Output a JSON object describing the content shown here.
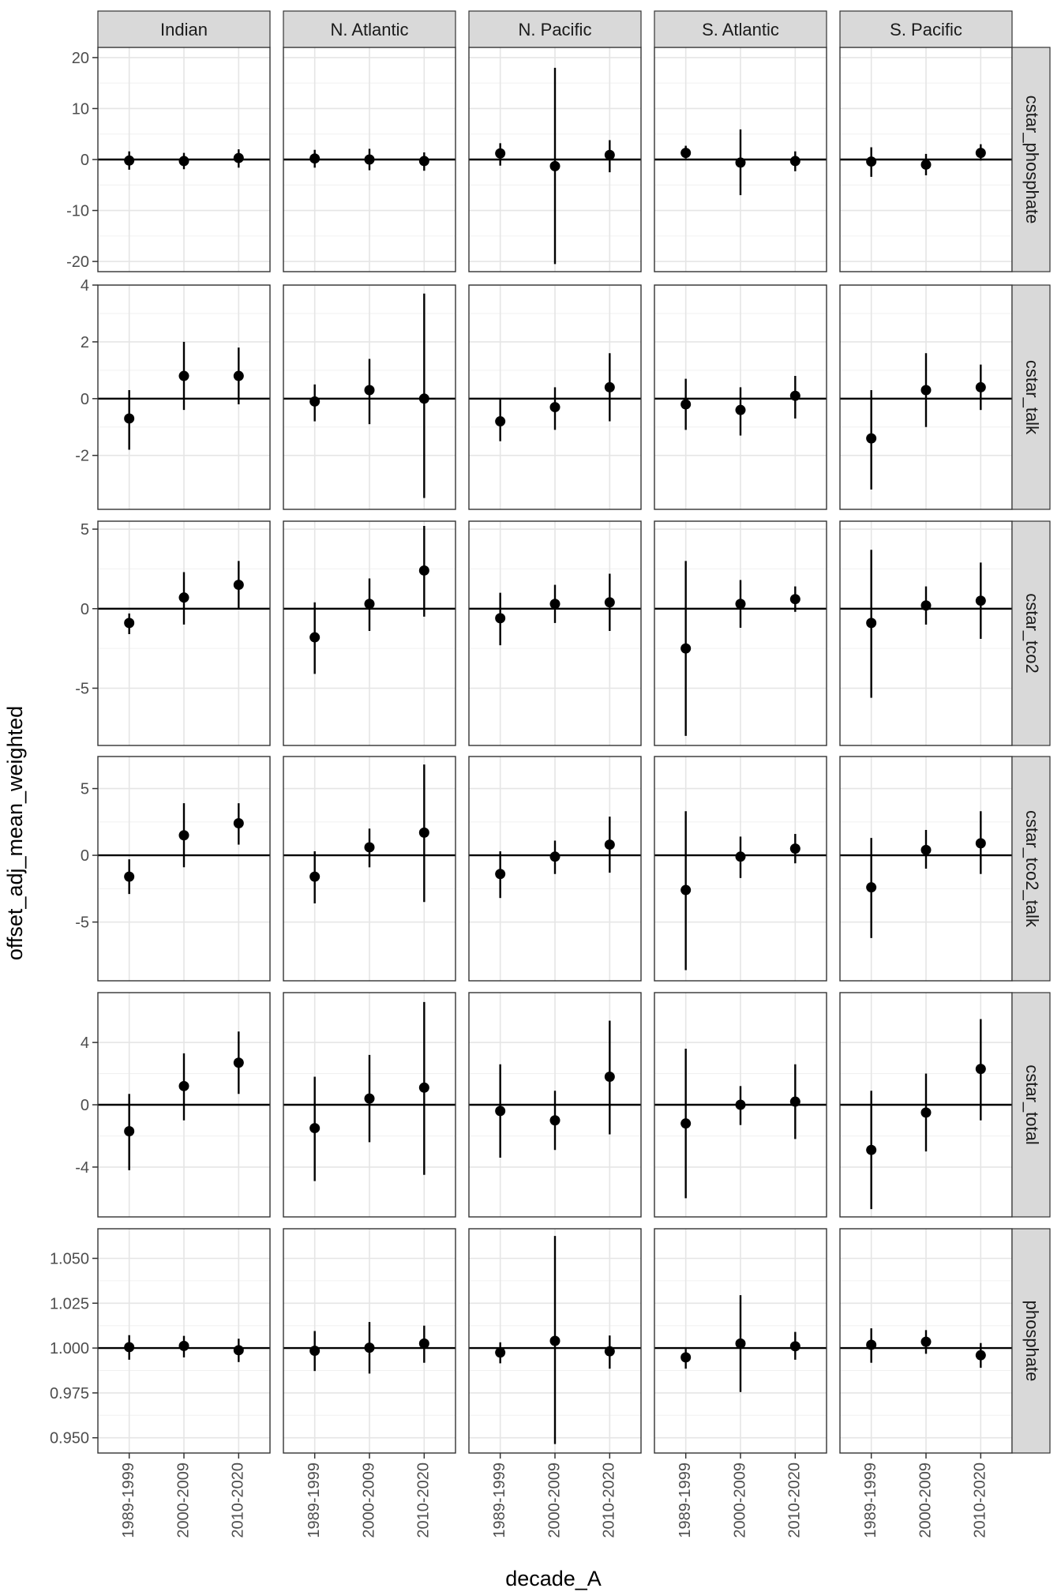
{
  "chart_data": {
    "type": "errorbar-facet",
    "xlabel": "decade_A",
    "ylabel": "offset_adj_mean_weighted",
    "x_categories": [
      "1989-1999",
      "2000-2009",
      "2010-2020"
    ],
    "columns": [
      "Indian",
      "N. Atlantic",
      "N. Pacific",
      "S. Atlantic",
      "S. Pacific"
    ],
    "reference_line": {
      "y": [
        0,
        0,
        0,
        0,
        0,
        1
      ]
    },
    "rows": [
      {
        "name": "cstar_phosphate",
        "ylim": [
          -22,
          22
        ],
        "ticks": [
          -20,
          -10,
          0,
          10,
          20
        ],
        "tick_labels": [
          "-20",
          "-10",
          "0",
          "10",
          "20"
        ],
        "panels": [
          {
            "mean": [
              -0.2,
              -0.3,
              0.3
            ],
            "lo": [
              -2.0,
              -1.9,
              -1.6
            ],
            "hi": [
              1.6,
              1.3,
              2.0
            ]
          },
          {
            "mean": [
              0.2,
              0.0,
              -0.3
            ],
            "lo": [
              -1.6,
              -2.1,
              -2.2
            ],
            "hi": [
              1.9,
              2.1,
              1.4
            ]
          },
          {
            "mean": [
              1.2,
              -1.3,
              0.9
            ],
            "lo": [
              -1.2,
              -20.5,
              -2.5
            ],
            "hi": [
              3.2,
              18.0,
              3.8
            ]
          },
          {
            "mean": [
              1.3,
              -0.6,
              -0.3
            ],
            "lo": [
              0.2,
              -7.0,
              -2.3
            ],
            "hi": [
              2.7,
              5.9,
              1.6
            ]
          },
          {
            "mean": [
              -0.4,
              -1.0,
              1.3
            ],
            "lo": [
              -3.4,
              -3.1,
              -0.2
            ],
            "hi": [
              2.4,
              1.1,
              3.0
            ]
          }
        ]
      },
      {
        "name": "cstar_talk",
        "ylim": [
          -3.9,
          4.0
        ],
        "ticks": [
          -2,
          0,
          2,
          4
        ],
        "tick_labels": [
          "-2",
          "0",
          "2",
          "4"
        ],
        "panels": [
          {
            "mean": [
              -0.7,
              0.8,
              0.8
            ],
            "lo": [
              -1.8,
              -0.4,
              -0.2
            ],
            "hi": [
              0.3,
              2.0,
              1.8
            ]
          },
          {
            "mean": [
              -0.1,
              0.3,
              0.0
            ],
            "lo": [
              -0.8,
              -0.9,
              -3.5
            ],
            "hi": [
              0.5,
              1.4,
              3.7
            ]
          },
          {
            "mean": [
              -0.8,
              -0.3,
              0.4
            ],
            "lo": [
              -1.5,
              -1.1,
              -0.8
            ],
            "hi": [
              0.0,
              0.4,
              1.6
            ]
          },
          {
            "mean": [
              -0.2,
              -0.4,
              0.1
            ],
            "lo": [
              -1.1,
              -1.3,
              -0.7
            ],
            "hi": [
              0.7,
              0.4,
              0.8
            ]
          },
          {
            "mean": [
              -1.4,
              0.3,
              0.4
            ],
            "lo": [
              -3.2,
              -1.0,
              -0.4
            ],
            "hi": [
              0.3,
              1.6,
              1.2
            ]
          }
        ]
      },
      {
        "name": "cstar_tco2",
        "ylim": [
          -8.6,
          5.5
        ],
        "ticks": [
          -5,
          0,
          5
        ],
        "tick_labels": [
          "-5",
          "0",
          "5"
        ],
        "panels": [
          {
            "mean": [
              -0.9,
              0.7,
              1.5
            ],
            "lo": [
              -1.6,
              -1.0,
              0.0
            ],
            "hi": [
              -0.3,
              2.3,
              3.0
            ]
          },
          {
            "mean": [
              -1.8,
              0.3,
              2.4
            ],
            "lo": [
              -4.1,
              -1.4,
              -0.5
            ],
            "hi": [
              0.4,
              1.9,
              5.2
            ]
          },
          {
            "mean": [
              -0.6,
              0.3,
              0.4
            ],
            "lo": [
              -2.3,
              -0.9,
              -1.4
            ],
            "hi": [
              1.0,
              1.5,
              2.2
            ]
          },
          {
            "mean": [
              -2.5,
              0.3,
              0.6
            ],
            "lo": [
              -8.0,
              -1.2,
              -0.2
            ],
            "hi": [
              3.0,
              1.8,
              1.4
            ]
          },
          {
            "mean": [
              -0.9,
              0.2,
              0.5
            ],
            "lo": [
              -5.6,
              -1.0,
              -1.9
            ],
            "hi": [
              3.7,
              1.4,
              2.9
            ]
          }
        ]
      },
      {
        "name": "cstar_tco2_talk",
        "ylim": [
          -9.4,
          7.4
        ],
        "ticks": [
          -5,
          0,
          5
        ],
        "tick_labels": [
          "-5",
          "0",
          "5"
        ],
        "panels": [
          {
            "mean": [
              -1.6,
              1.5,
              2.4
            ],
            "lo": [
              -2.9,
              -0.9,
              0.8
            ],
            "hi": [
              -0.3,
              3.9,
              3.9
            ]
          },
          {
            "mean": [
              -1.6,
              0.6,
              1.7
            ],
            "lo": [
              -3.6,
              -0.9,
              -3.5
            ],
            "hi": [
              0.3,
              2.0,
              6.8
            ]
          },
          {
            "mean": [
              -1.4,
              -0.1,
              0.8
            ],
            "lo": [
              -3.2,
              -1.4,
              -1.3
            ],
            "hi": [
              0.3,
              1.1,
              2.9
            ]
          },
          {
            "mean": [
              -2.6,
              -0.1,
              0.5
            ],
            "lo": [
              -8.6,
              -1.7,
              -0.6
            ],
            "hi": [
              3.3,
              1.4,
              1.6
            ]
          },
          {
            "mean": [
              -2.4,
              0.4,
              0.9
            ],
            "lo": [
              -6.2,
              -1.0,
              -1.4
            ],
            "hi": [
              1.3,
              1.9,
              3.3
            ]
          }
        ]
      },
      {
        "name": "cstar_total",
        "ylim": [
          -7.2,
          7.2
        ],
        "ticks": [
          -4,
          0,
          4
        ],
        "tick_labels": [
          "-4",
          "0",
          "4"
        ],
        "panels": [
          {
            "mean": [
              -1.7,
              1.2,
              2.7
            ],
            "lo": [
              -4.2,
              -1.0,
              0.7
            ],
            "hi": [
              0.7,
              3.3,
              4.7
            ]
          },
          {
            "mean": [
              -1.5,
              0.4,
              1.1
            ],
            "lo": [
              -4.9,
              -2.4,
              -4.5
            ],
            "hi": [
              1.8,
              3.2,
              6.6
            ]
          },
          {
            "mean": [
              -0.4,
              -1.0,
              1.8
            ],
            "lo": [
              -3.4,
              -2.9,
              -1.9
            ],
            "hi": [
              2.6,
              0.9,
              5.4
            ]
          },
          {
            "mean": [
              -1.2,
              0.0,
              0.2
            ],
            "lo": [
              -6.0,
              -1.3,
              -2.2
            ],
            "hi": [
              3.6,
              1.2,
              2.6
            ]
          },
          {
            "mean": [
              -2.9,
              -0.5,
              2.3
            ],
            "lo": [
              -6.7,
              -3.0,
              -1.0
            ],
            "hi": [
              0.9,
              2.0,
              5.5
            ]
          }
        ]
      },
      {
        "name": "phosphate",
        "ylim": [
          0.9415,
          1.0665
        ],
        "ticks": [
          0.95,
          0.975,
          1.0,
          1.025,
          1.05
        ],
        "tick_labels": [
          "0.950",
          "0.975",
          "1.000",
          "1.025",
          "1.050"
        ],
        "panels": [
          {
            "mean": [
              1.0005,
              1.0012,
              0.9988
            ],
            "lo": [
              0.9935,
              0.9948,
              0.9922
            ],
            "hi": [
              1.0072,
              1.0068,
              1.0052
            ]
          },
          {
            "mean": [
              0.9985,
              1.0002,
              1.0025
            ],
            "lo": [
              0.9872,
              0.9858,
              0.9918
            ],
            "hi": [
              1.0095,
              1.0145,
              1.0125
            ]
          },
          {
            "mean": [
              0.9975,
              1.004,
              0.9982
            ],
            "lo": [
              0.9915,
              0.9465,
              0.9885
            ],
            "hi": [
              1.0032,
              1.0625,
              1.007
            ]
          },
          {
            "mean": [
              0.9948,
              1.0025,
              1.001
            ],
            "lo": [
              0.9885,
              0.9755,
              0.9935
            ],
            "hi": [
              0.9995,
              1.0295,
              1.009
            ]
          },
          {
            "mean": [
              1.0018,
              1.0035,
              0.996
            ],
            "lo": [
              0.9918,
              0.9968,
              0.989
            ],
            "hi": [
              1.011,
              1.01,
              1.0028
            ]
          }
        ]
      }
    ]
  }
}
